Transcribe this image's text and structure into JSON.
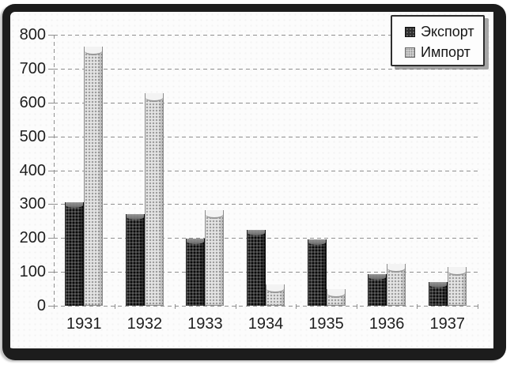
{
  "frame": {
    "style": "scanned-book-figure",
    "border_color": "#1c1c1c",
    "background": "#fcfcfc"
  },
  "legend": {
    "position": "top-right",
    "items": [
      {
        "label": "Экспорт",
        "swatch": "dark-speckled-square"
      },
      {
        "label": "Импорт",
        "swatch": "light-speckled-square"
      }
    ]
  },
  "chart_data": {
    "type": "bar",
    "title": "",
    "xlabel": "",
    "ylabel": "",
    "categories": [
      "1931",
      "1932",
      "1933",
      "1934",
      "1935",
      "1936",
      "1937"
    ],
    "series": [
      {
        "name": "Экспорт",
        "color": "#3d3d3d",
        "values": [
          305,
          270,
          198,
          225,
          195,
          93,
          70
        ]
      },
      {
        "name": "Импорт",
        "color": "#e4e4e4",
        "values": [
          765,
          628,
          282,
          62,
          48,
          124,
          115
        ]
      }
    ],
    "ylim": [
      0,
      800
    ],
    "yticks": [
      0,
      100,
      200,
      300,
      400,
      500,
      600,
      700,
      800
    ],
    "grid": "horizontal-dashed",
    "axis_style": "dashed-gray",
    "legend_position": "top-right",
    "bar_style": "3d-cylinder-halftone"
  }
}
